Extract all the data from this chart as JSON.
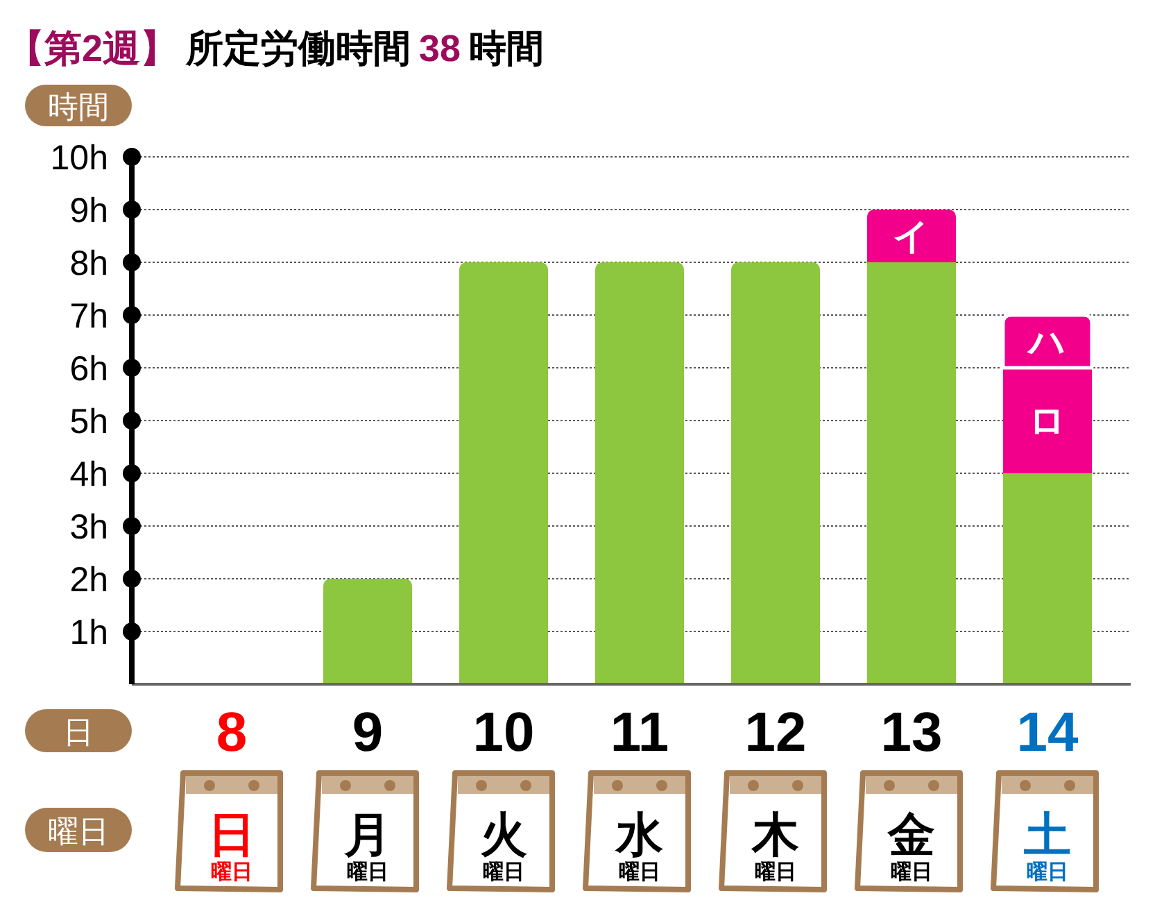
{
  "chart_data": {
    "type": "bar",
    "title": "【第2週】",
    "subtitle": "所定労働時間38時間",
    "ylabel": "時間",
    "xlabel": "日",
    "categories": [
      "8",
      "9",
      "10",
      "11",
      "12",
      "13",
      "14"
    ],
    "stacked": true,
    "series": [
      {
        "color": "#8dc63f",
        "values": [
          null,
          2,
          8,
          8,
          8,
          8,
          4
        ]
      },
      {
        "color": "#f2008c",
        "values": [
          null,
          null,
          null,
          null,
          null,
          1,
          2
        ],
        "value_labels": [
          null,
          null,
          null,
          null,
          null,
          "イ",
          "ロ"
        ]
      },
      {
        "color": "#f2008c",
        "values": [
          null,
          null,
          null,
          null,
          null,
          null,
          1
        ],
        "value_labels": [
          null,
          null,
          null,
          null,
          null,
          null,
          "ハ"
        ]
      }
    ],
    "ylim": [
      0,
      10
    ],
    "yticks": [
      {
        "value": 1,
        "label": "1h"
      },
      {
        "value": 2,
        "label": "2h"
      },
      {
        "value": 3,
        "label": "3h"
      },
      {
        "value": 4,
        "label": "4h"
      },
      {
        "value": 5,
        "label": "5h"
      },
      {
        "value": 6,
        "label": "6h"
      },
      {
        "value": 7,
        "label": "7h"
      },
      {
        "value": 8,
        "label": "8h"
      },
      {
        "value": 9,
        "label": "9h"
      },
      {
        "value": 10,
        "label": "10h"
      }
    ],
    "grid": "y",
    "annotations": [
      "曜日",
      "日",
      "曜日",
      "月",
      "曜日",
      "火",
      "曜日",
      "水",
      "曜日",
      "木",
      "曜日",
      "金",
      "曜日",
      "土",
      "曜日"
    ]
  }
}
